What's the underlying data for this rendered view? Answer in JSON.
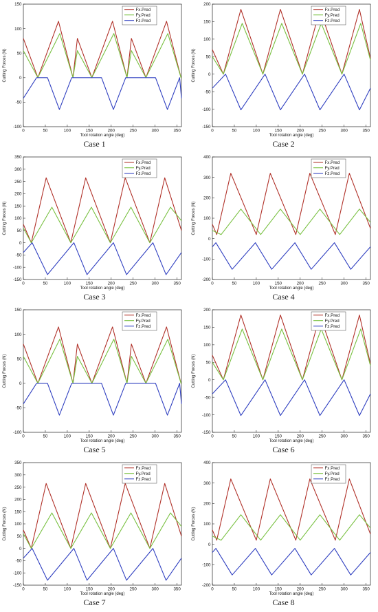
{
  "colors": {
    "Fx.Pred": "#b03028",
    "Fy.Pred": "#78c040",
    "Fz.Pred": "#2f3fc0"
  },
  "chart_data": [
    {
      "type": "line",
      "caption": "Case 1",
      "xlabel": "Tool rotation angle (deg)",
      "ylabel": "Cutting Forces (N)",
      "xlim": [
        0,
        360
      ],
      "ylim": [
        -100,
        150
      ],
      "xticks": [
        0,
        50,
        100,
        150,
        200,
        250,
        300,
        350
      ],
      "yticks": [
        -100,
        -50,
        0,
        50,
        100,
        150
      ],
      "legend": "top-right",
      "series": [
        {
          "name": "Fx.Pred",
          "x": [
            0,
            33,
            80,
            113,
            123,
            156,
            203,
            236,
            246,
            279,
            326,
            359,
            360
          ],
          "y": [
            80,
            0,
            115,
            0,
            80,
            0,
            115,
            0,
            80,
            0,
            115,
            0,
            0
          ]
        },
        {
          "name": "Fy.Pred",
          "x": [
            0,
            33,
            83,
            113,
            123,
            156,
            206,
            236,
            246,
            279,
            329,
            359,
            360
          ],
          "y": [
            55,
            0,
            90,
            0,
            55,
            0,
            90,
            0,
            55,
            0,
            90,
            0,
            0
          ]
        },
        {
          "name": "Fz.Pred",
          "x": [
            0,
            30,
            55,
            82,
            110,
            153,
            178,
            205,
            233,
            276,
            301,
            328,
            356,
            360
          ],
          "y": [
            -42,
            0,
            0,
            -65,
            0,
            0,
            0,
            -65,
            0,
            0,
            0,
            -65,
            0,
            -42
          ]
        }
      ]
    },
    {
      "type": "line",
      "caption": "Case 2",
      "xlabel": "Tool rotation angle (deg)",
      "ylabel": "Cutting Forces (N)",
      "xlim": [
        0,
        360
      ],
      "ylim": [
        -150,
        200
      ],
      "xticks": [
        0,
        50,
        100,
        150,
        200,
        250,
        300,
        350
      ],
      "yticks": [
        -150,
        -100,
        -50,
        0,
        50,
        100,
        150,
        200
      ],
      "legend": "top-right",
      "series": [
        {
          "name": "Fx.Pred",
          "x": [
            0,
            25,
            65,
            115,
            155,
            205,
            245,
            295,
            335,
            360
          ],
          "y": [
            70,
            0,
            185,
            0,
            185,
            0,
            185,
            0,
            185,
            45
          ]
        },
        {
          "name": "Fy.Pred",
          "x": [
            0,
            25,
            68,
            115,
            158,
            205,
            248,
            295,
            338,
            360
          ],
          "y": [
            50,
            0,
            145,
            0,
            145,
            0,
            145,
            0,
            145,
            40
          ]
        },
        {
          "name": "Fz.Pred",
          "x": [
            0,
            30,
            65,
            120,
            155,
            210,
            245,
            300,
            335,
            360
          ],
          "y": [
            -40,
            0,
            -102,
            0,
            -102,
            0,
            -102,
            0,
            -102,
            -40
          ]
        }
      ]
    },
    {
      "type": "line",
      "caption": "Case 3",
      "xlabel": "Tool rotation angle (deg)",
      "ylabel": "Cutting Forces (N)",
      "xlim": [
        0,
        360
      ],
      "ylim": [
        -150,
        350
      ],
      "xticks": [
        0,
        50,
        100,
        150,
        200,
        250,
        300,
        350
      ],
      "yticks": [
        -150,
        -100,
        -50,
        0,
        50,
        100,
        150,
        200,
        250,
        300,
        350
      ],
      "legend": "top-right",
      "series": [
        {
          "name": "Fx.Pred",
          "x": [
            0,
            18,
            52,
            108,
            142,
            198,
            232,
            288,
            322,
            360
          ],
          "y": [
            75,
            0,
            265,
            0,
            265,
            0,
            265,
            0,
            265,
            50
          ]
        },
        {
          "name": "Fy.Pred",
          "x": [
            0,
            18,
            65,
            108,
            155,
            198,
            245,
            288,
            335,
            360
          ],
          "y": [
            60,
            0,
            145,
            0,
            145,
            0,
            145,
            0,
            145,
            90
          ]
        },
        {
          "name": "Fz.Pred",
          "x": [
            0,
            20,
            55,
            115,
            145,
            205,
            235,
            295,
            325,
            360
          ],
          "y": [
            -40,
            0,
            -130,
            0,
            -130,
            0,
            -130,
            0,
            -130,
            -40
          ]
        }
      ]
    },
    {
      "type": "line",
      "caption": "Case 4",
      "xlabel": "Tool rotation angle (deg)",
      "ylabel": "Cutting Forces (N)",
      "xlim": [
        0,
        360
      ],
      "ylim": [
        -200,
        400
      ],
      "xticks": [
        0,
        50,
        100,
        150,
        200,
        250,
        300,
        350
      ],
      "yticks": [
        -200,
        -100,
        0,
        100,
        200,
        300,
        400
      ],
      "legend": "top-right",
      "series": [
        {
          "name": "Fx.Pred",
          "x": [
            0,
            10,
            42,
            100,
            132,
            190,
            222,
            280,
            312,
            360
          ],
          "y": [
            70,
            20,
            320,
            20,
            320,
            20,
            320,
            20,
            320,
            50
          ]
        },
        {
          "name": "Fy.Pred",
          "x": [
            0,
            20,
            65,
            110,
            155,
            200,
            245,
            290,
            335,
            360
          ],
          "y": [
            40,
            20,
            145,
            20,
            145,
            20,
            145,
            20,
            145,
            80
          ]
        },
        {
          "name": "Fz.Pred",
          "x": [
            0,
            8,
            45,
            98,
            135,
            188,
            225,
            278,
            315,
            360
          ],
          "y": [
            -40,
            -20,
            -150,
            -20,
            -150,
            -20,
            -150,
            -20,
            -150,
            -40
          ]
        }
      ]
    },
    {
      "type": "line",
      "caption": "Case 5",
      "xlabel": "Tool rotation angle (deg)",
      "ylabel": "Cutting Forces (N)",
      "xlim": [
        0,
        360
      ],
      "ylim": [
        -100,
        150
      ],
      "xticks": [
        0,
        50,
        100,
        150,
        200,
        250,
        300,
        350
      ],
      "yticks": [
        -100,
        -50,
        0,
        50,
        100,
        150
      ],
      "legend": "top-right",
      "series": [
        {
          "name": "Fx.Pred",
          "x": [
            0,
            33,
            80,
            113,
            123,
            156,
            203,
            236,
            246,
            279,
            326,
            359,
            360
          ],
          "y": [
            80,
            0,
            115,
            0,
            80,
            0,
            115,
            0,
            80,
            0,
            115,
            0,
            0
          ]
        },
        {
          "name": "Fy.Pred",
          "x": [
            0,
            33,
            83,
            113,
            123,
            156,
            206,
            236,
            246,
            279,
            329,
            359,
            360
          ],
          "y": [
            55,
            0,
            90,
            0,
            55,
            0,
            90,
            0,
            55,
            0,
            90,
            0,
            0
          ]
        },
        {
          "name": "Fz.Pred",
          "x": [
            0,
            30,
            55,
            82,
            110,
            153,
            178,
            205,
            233,
            276,
            301,
            328,
            356,
            360
          ],
          "y": [
            -42,
            0,
            0,
            -65,
            0,
            0,
            0,
            -65,
            0,
            0,
            0,
            -65,
            0,
            -42
          ]
        }
      ]
    },
    {
      "type": "line",
      "caption": "Case 6",
      "xlabel": "Tool rotation angle (deg)",
      "ylabel": "Cutting Forces (N)",
      "xlim": [
        0,
        360
      ],
      "ylim": [
        -150,
        200
      ],
      "xticks": [
        0,
        50,
        100,
        150,
        200,
        250,
        300,
        350
      ],
      "yticks": [
        -150,
        -100,
        -50,
        0,
        50,
        100,
        150,
        200
      ],
      "legend": "top-right",
      "series": [
        {
          "name": "Fx.Pred",
          "x": [
            0,
            25,
            65,
            115,
            155,
            205,
            245,
            295,
            335,
            360
          ],
          "y": [
            70,
            0,
            185,
            0,
            185,
            0,
            185,
            0,
            185,
            45
          ]
        },
        {
          "name": "Fy.Pred",
          "x": [
            0,
            25,
            68,
            115,
            158,
            205,
            248,
            295,
            338,
            360
          ],
          "y": [
            50,
            0,
            145,
            0,
            145,
            0,
            145,
            0,
            145,
            40
          ]
        },
        {
          "name": "Fz.Pred",
          "x": [
            0,
            30,
            65,
            120,
            155,
            210,
            245,
            300,
            335,
            360
          ],
          "y": [
            -40,
            0,
            -102,
            0,
            -102,
            0,
            -102,
            0,
            -102,
            -40
          ]
        }
      ]
    },
    {
      "type": "line",
      "caption": "Case 7",
      "xlabel": "Tool rotation angle (deg)",
      "ylabel": "Cutting Forces (N)",
      "xlim": [
        0,
        360
      ],
      "ylim": [
        -150,
        350
      ],
      "xticks": [
        0,
        50,
        100,
        150,
        200,
        250,
        300,
        350
      ],
      "yticks": [
        -150,
        -100,
        -50,
        0,
        50,
        100,
        150,
        200,
        250,
        300,
        350
      ],
      "legend": "top-right",
      "series": [
        {
          "name": "Fx.Pred",
          "x": [
            0,
            18,
            52,
            108,
            142,
            198,
            232,
            288,
            322,
            360
          ],
          "y": [
            75,
            0,
            265,
            0,
            265,
            0,
            265,
            0,
            265,
            50
          ]
        },
        {
          "name": "Fy.Pred",
          "x": [
            0,
            18,
            65,
            108,
            155,
            198,
            245,
            288,
            335,
            360
          ],
          "y": [
            60,
            0,
            145,
            0,
            145,
            0,
            145,
            0,
            145,
            90
          ]
        },
        {
          "name": "Fz.Pred",
          "x": [
            0,
            20,
            55,
            115,
            145,
            205,
            235,
            295,
            325,
            360
          ],
          "y": [
            -40,
            0,
            -130,
            0,
            -130,
            0,
            -130,
            0,
            -130,
            -40
          ]
        }
      ]
    },
    {
      "type": "line",
      "caption": "Case 8",
      "xlabel": "Tool rotation angle (deg)",
      "ylabel": "Cutting Forces (N)",
      "xlim": [
        0,
        360
      ],
      "ylim": [
        -200,
        400
      ],
      "xticks": [
        0,
        50,
        100,
        150,
        200,
        250,
        300,
        350
      ],
      "yticks": [
        -200,
        -100,
        0,
        100,
        200,
        300,
        400
      ],
      "legend": "top-right",
      "series": [
        {
          "name": "Fx.Pred",
          "x": [
            0,
            10,
            42,
            100,
            132,
            190,
            222,
            280,
            312,
            360
          ],
          "y": [
            70,
            20,
            320,
            20,
            320,
            20,
            320,
            20,
            320,
            50
          ]
        },
        {
          "name": "Fy.Pred",
          "x": [
            0,
            20,
            65,
            110,
            155,
            200,
            245,
            290,
            335,
            360
          ],
          "y": [
            40,
            20,
            145,
            20,
            145,
            20,
            145,
            20,
            145,
            80
          ]
        },
        {
          "name": "Fz.Pred",
          "x": [
            0,
            8,
            45,
            98,
            135,
            188,
            225,
            278,
            315,
            360
          ],
          "y": [
            -40,
            -20,
            -150,
            -20,
            -150,
            -20,
            -150,
            -20,
            -150,
            -40
          ]
        }
      ]
    }
  ]
}
